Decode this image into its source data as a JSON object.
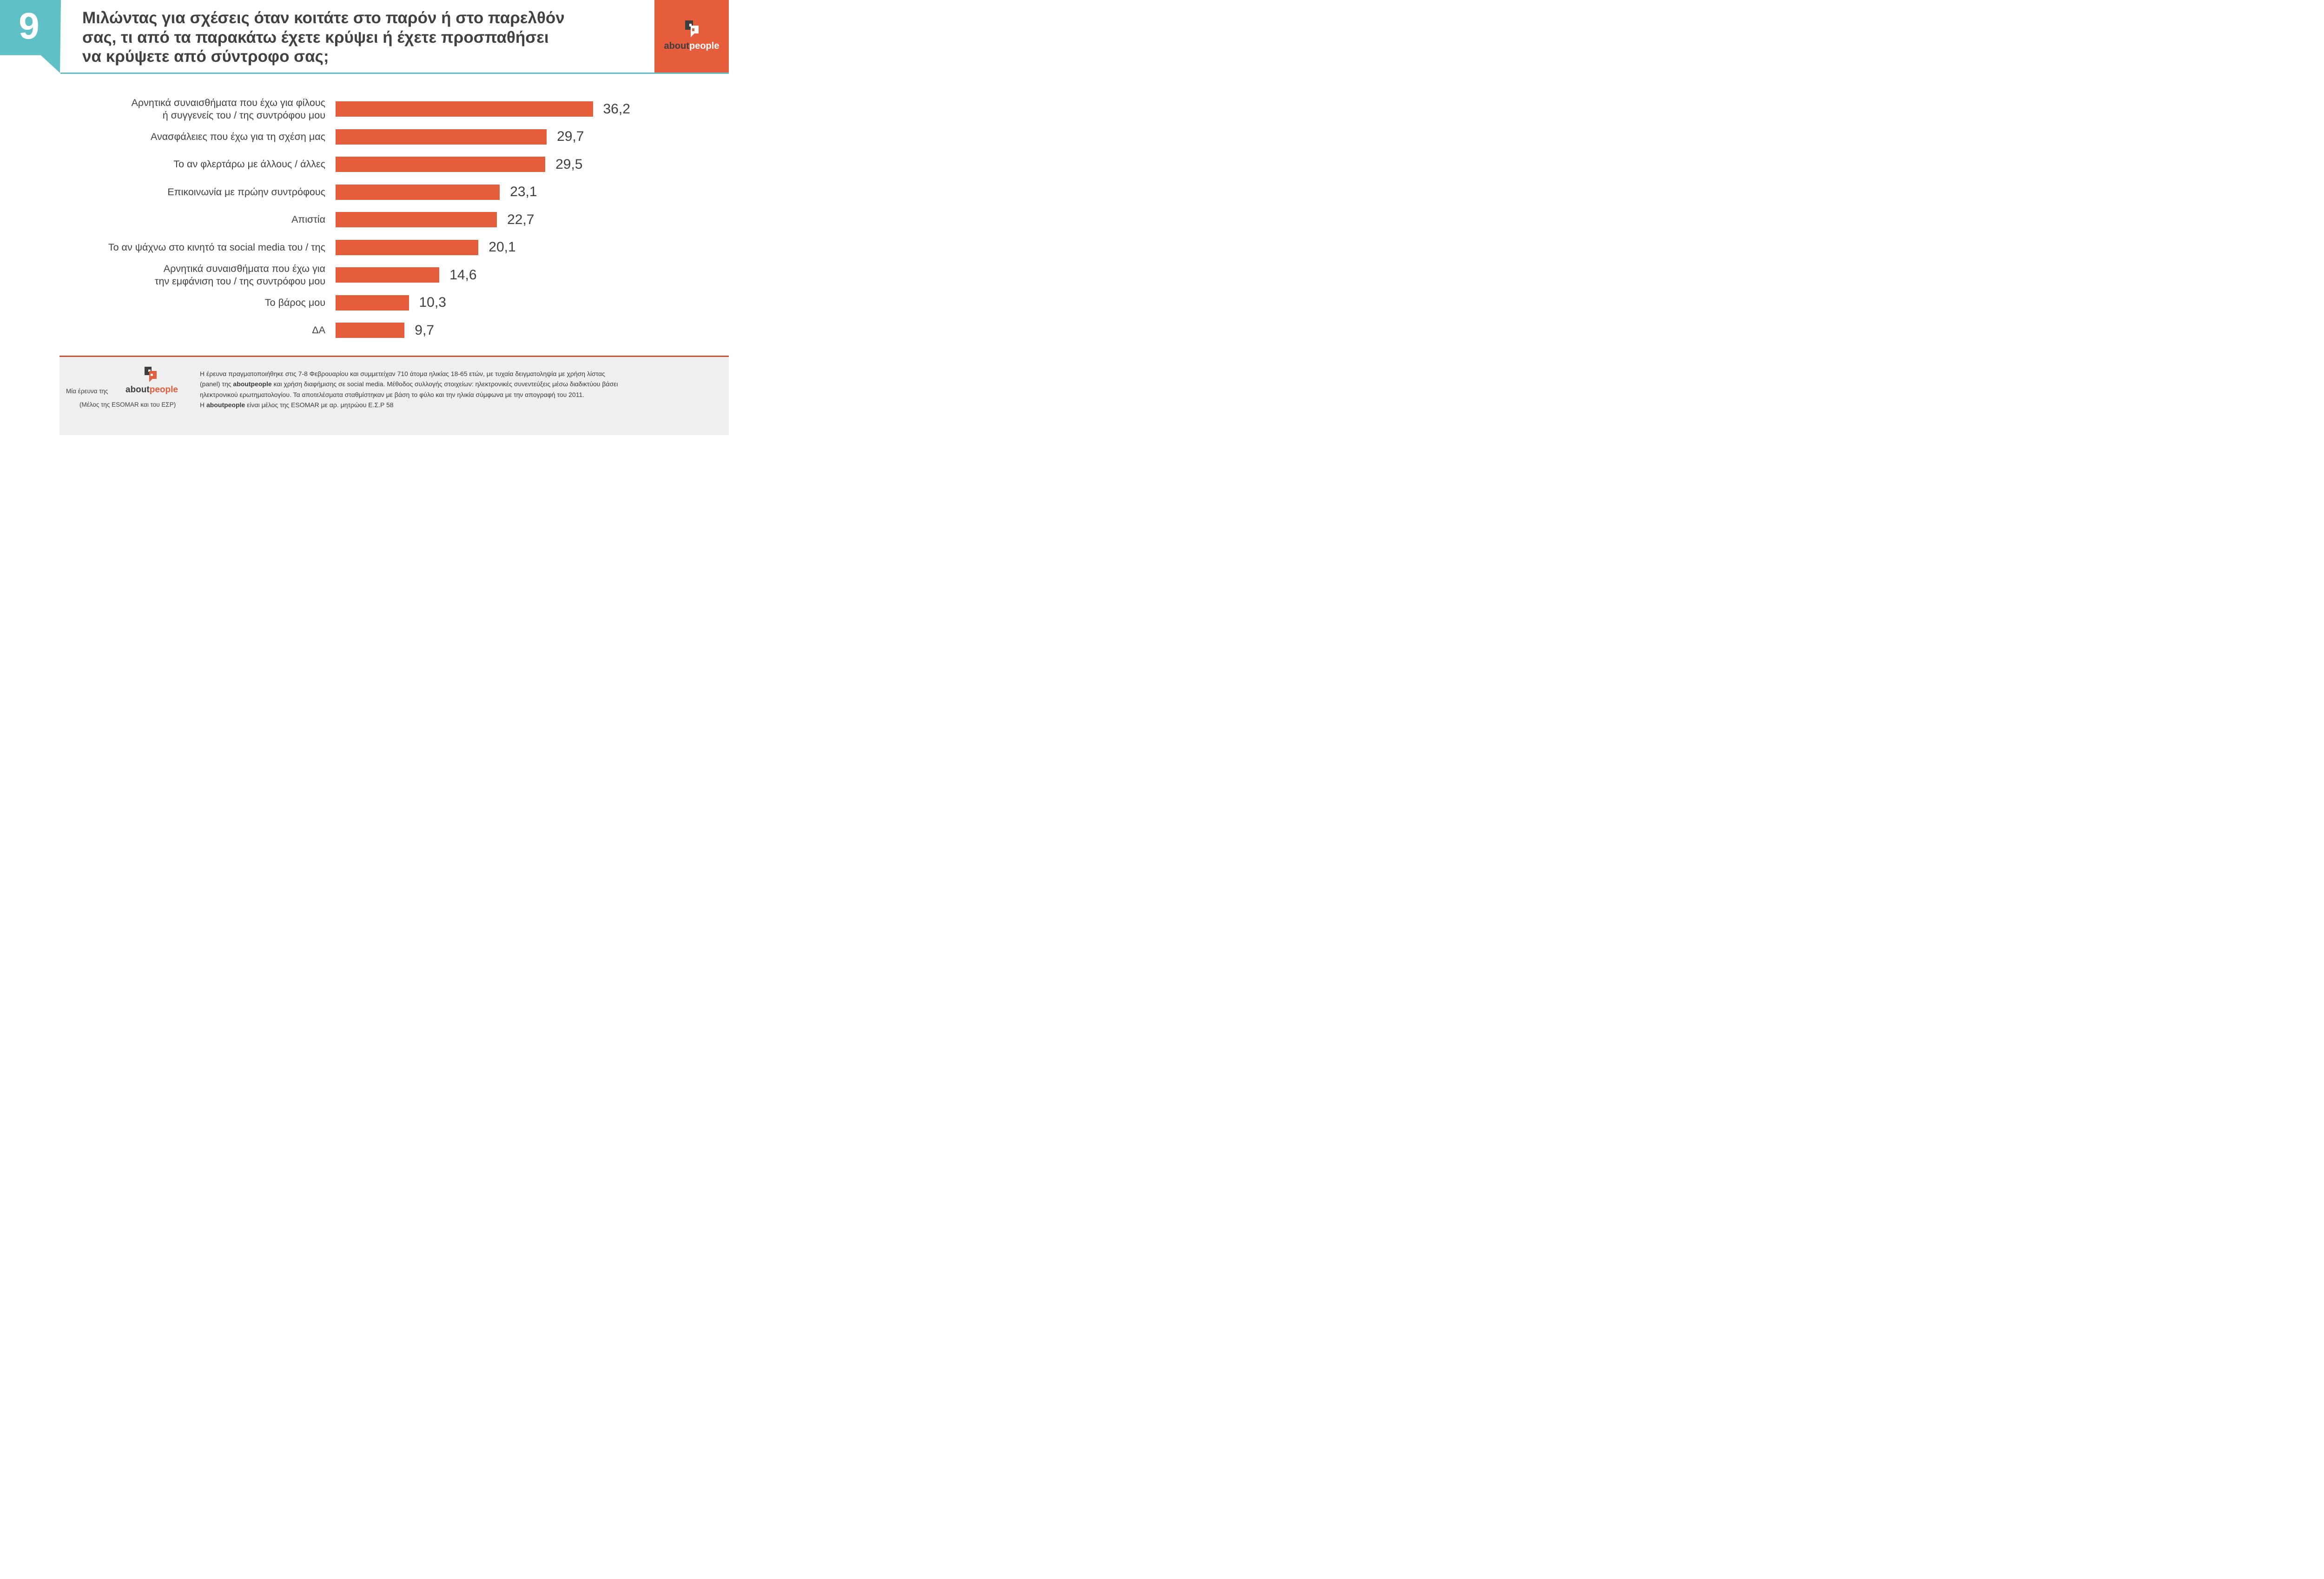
{
  "page": {
    "number": "9"
  },
  "header": {
    "title_lines": [
      "Μιλώντας για σχέσεις όταν κοιτάτε στο παρόν ή στο παρελθόν",
      "σας, τι από τα παρακάτω έχετε κρύψει ή έχετε προσπαθήσει",
      "να κρύψετε από σύντροφο σας;"
    ]
  },
  "brand": {
    "name_bold": "about",
    "name_accent": "people",
    "icon": "speech-bubbles-icon"
  },
  "colors": {
    "teal_accent": "#5fc0c5",
    "orange_accent": "#e55d3b",
    "footer_rule": "#cb5438",
    "text_dark": "#414042",
    "footer_background": "#efefef"
  },
  "chart_data": {
    "type": "bar",
    "orientation": "horizontal",
    "title": "Μιλώντας για σχέσεις όταν κοιτάτε στο παρόν ή στο παρελθόν σας, τι από τα παρακάτω έχετε κρύψει ή έχετε προσπαθήσει να κρύψετε από σύντροφο σας;",
    "xlabel": "",
    "ylabel": "",
    "xlim": [
      0,
      40
    ],
    "grid": false,
    "legend": false,
    "unit": "percent",
    "categories": [
      [
        "Αρνητικά συναισθήματα που έχω για φίλους",
        "ή συγγενείς του / της συντρόφου μου"
      ],
      [
        "Ανασφάλειες που έχω για τη σχέση μας"
      ],
      [
        "Το αν φλερτάρω με άλλους / άλλες"
      ],
      [
        "Επικοινωνία με πρώην συντρόφους"
      ],
      [
        "Απιστία"
      ],
      [
        "Το αν ψάχνω στο κινητό τα social media του / της"
      ],
      [
        "Αρνητικά συναισθήματα που έχω για",
        "την εμφάνιση του / της συντρόφου μου"
      ],
      [
        "Το βάρος μου"
      ],
      [
        "ΔΑ"
      ]
    ],
    "values": [
      36.2,
      29.7,
      29.5,
      23.1,
      22.7,
      20.1,
      14.6,
      10.3,
      9.7
    ],
    "value_labels": [
      "36,2",
      "29,7",
      "29,5",
      "23,1",
      "22,7",
      "20,1",
      "14,6",
      "10,3",
      "9,7"
    ]
  },
  "footer": {
    "left": {
      "caption": "Μία έρευνα της",
      "membership": "(Μέλος της ESOMAR και του ΕΣΡ)"
    },
    "note": {
      "l1": "Η έρευνα πραγματοποιήθηκε στις 7-8 Φεβρουαρίου και συμμετείχαν 710 άτομα ηλικίας 18-65 ετών, με τυχαία δειγματοληψία με χρήση λίστας",
      "l2_pre": "(panel) της ",
      "l2_brand": "aboutpeople",
      "l2_post": " και χρήση διαφήμισης σε social media. Μέθοδος συλλογής στοιχείων: ηλεκτρονικές συνεντεύξεις μέσω διαδικτύου βάσει",
      "l3": "ηλεκτρονικού ερωτηματολογίου. Τα αποτελέσματα σταθμίστηκαν με βάση το φύλο και την ηλικία σύμφωνα με την απογραφή του 2011.",
      "l4_pre": "Η ",
      "l4_brand": "aboutpeople",
      "l4_post": "  είναι μέλος της ESOMAR με αρ. μητρώου Ε.Σ.Ρ 58"
    }
  }
}
